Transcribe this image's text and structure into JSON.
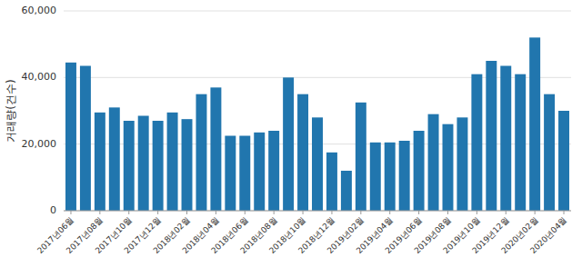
{
  "chart_data": {
    "type": "bar",
    "ylabel": "거래량(건수)",
    "categories": [
      "2017년06월",
      null,
      "2017년08월",
      null,
      "2017년10월",
      null,
      "2017년12월",
      null,
      "2018년02월",
      null,
      "2018년04월",
      null,
      "2018년06월",
      null,
      "2018년08월",
      null,
      "2018년10월",
      null,
      "2018년12월",
      null,
      "2019년02월",
      null,
      "2019년04월",
      null,
      "2019년06월",
      null,
      "2019년08월",
      null,
      "2019년10월",
      null,
      "2019년12월",
      null,
      "2020년02월",
      null,
      "2020년04월"
    ],
    "values": [
      44500,
      43500,
      29500,
      31000,
      27000,
      28500,
      27000,
      29500,
      27500,
      35000,
      37000,
      22500,
      22500,
      23500,
      24000,
      40000,
      35000,
      28000,
      17500,
      12000,
      32500,
      20500,
      20500,
      21000,
      24000,
      29000,
      26000,
      28000,
      41000,
      45000,
      43500,
      41000,
      52000,
      35000,
      30000
    ],
    "color": "#2176ae",
    "ylim": [
      0,
      60000
    ],
    "yticks": [
      0,
      {
        "value": 20000,
        "label": "20,000"
      },
      {
        "value": 40000,
        "label": "40,000"
      },
      {
        "value": 60000,
        "label": "60,000"
      }
    ],
    "grid": true
  }
}
